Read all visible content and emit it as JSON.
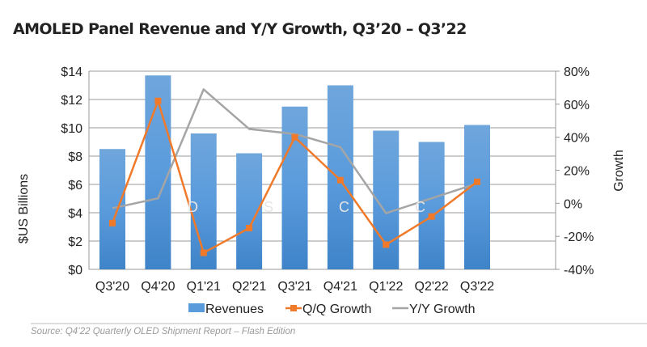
{
  "chart_data": {
    "type": "bar",
    "title": "AMOLED Panel Revenue and Y/Y Growth, Q3’20 – Q3’22",
    "categories": [
      "Q3'20",
      "Q4'20",
      "Q1'21",
      "Q2'21",
      "Q3'21",
      "Q4'21",
      "Q1'22",
      "Q2'22",
      "Q3'22"
    ],
    "ylabel": "$US  Billions",
    "y2label": "Growth",
    "ylim": [
      0,
      14
    ],
    "y2lim": [
      -40,
      80
    ],
    "yticks": [
      "$0",
      "$2",
      "$4",
      "$6",
      "$8",
      "$10",
      "$12",
      "$14"
    ],
    "y2ticks": [
      "-40%",
      "-20%",
      "0%",
      "20%",
      "40%",
      "60%",
      "80%"
    ],
    "grid": true,
    "legend_position": "bottom",
    "watermark": "DSCC",
    "series": [
      {
        "name": "Revenues",
        "type": "bar",
        "axis": "left",
        "color": "#4a90d6",
        "values": [
          8.5,
          13.7,
          9.6,
          8.2,
          11.5,
          13.0,
          9.8,
          9.0,
          10.2
        ]
      },
      {
        "name": "Q/Q Growth",
        "type": "line",
        "axis": "right",
        "color": "#f07a2a",
        "marker": "square",
        "values": [
          -12,
          62,
          -30,
          -15,
          40,
          14,
          -25,
          -8,
          13
        ]
      },
      {
        "name": "Y/Y Growth",
        "type": "line",
        "axis": "right",
        "color": "#a5a5a5",
        "values": [
          -3,
          3,
          69,
          45,
          42,
          34,
          -6,
          3,
          12
        ]
      }
    ]
  },
  "source": "Source: Q4’22 Quarterly OLED Shipment Report – Flash Edition"
}
